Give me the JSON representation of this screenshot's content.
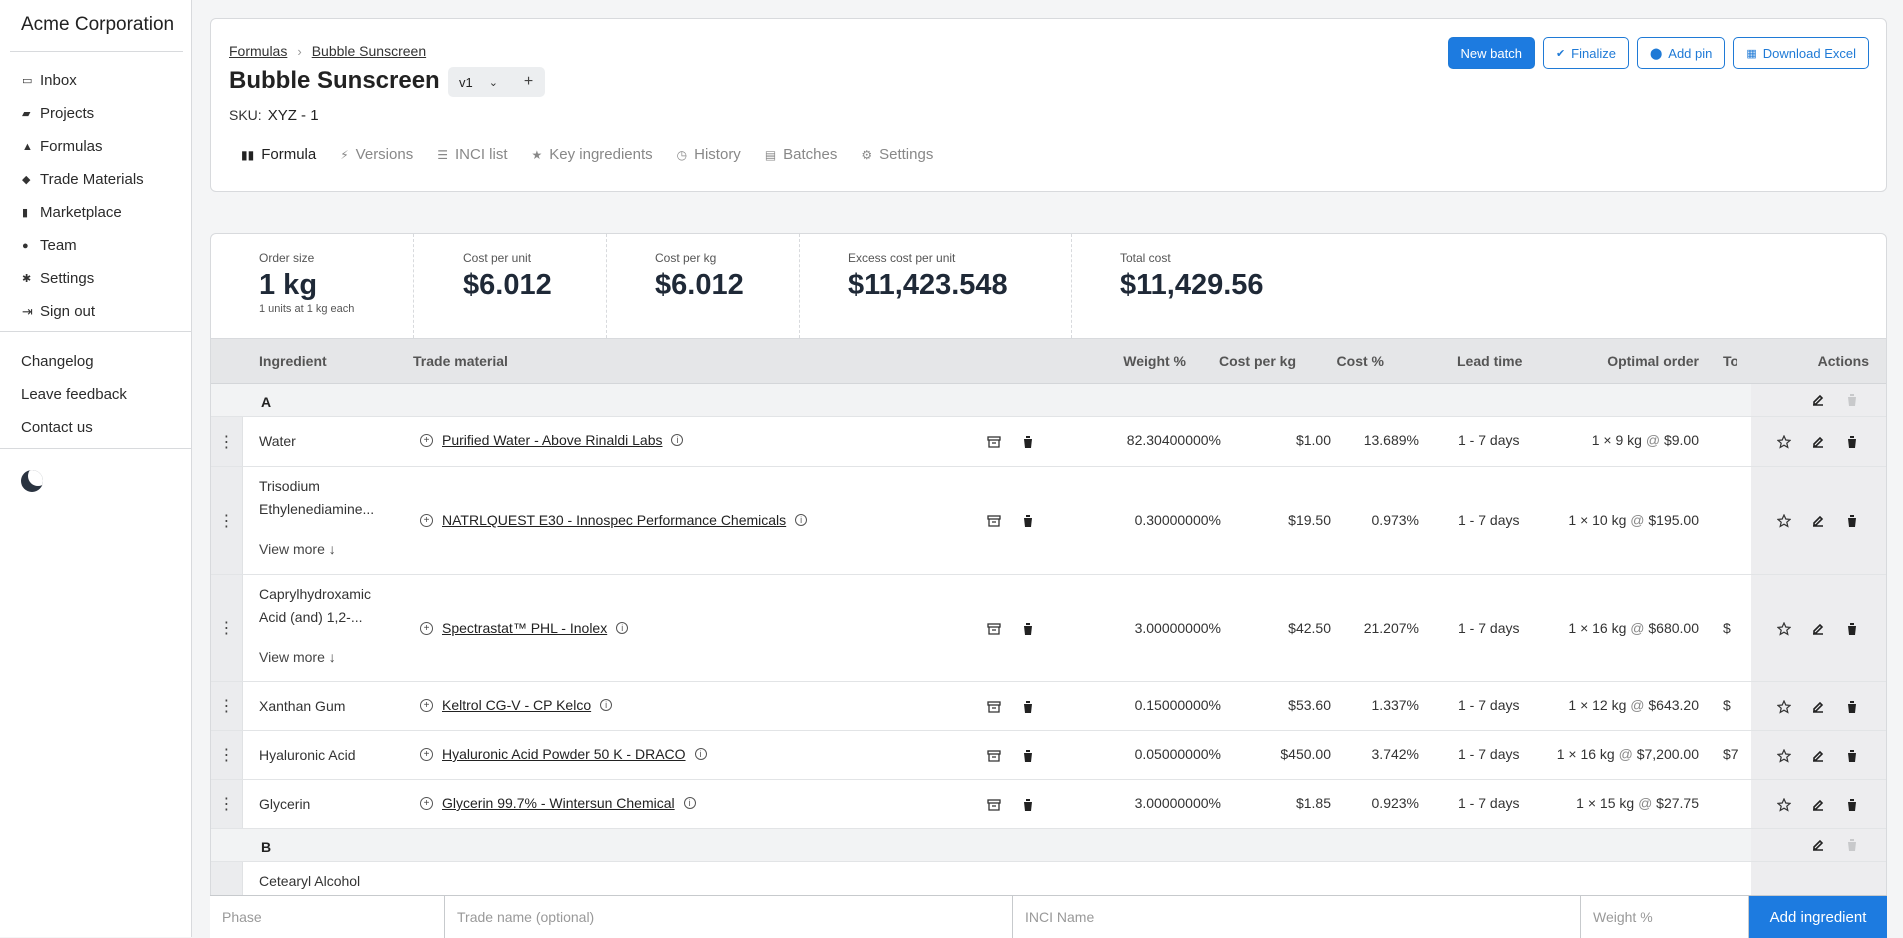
{
  "sidebar": {
    "brand": "Acme Corporation",
    "items": [
      {
        "label": "Inbox",
        "icon": "inbox-icon"
      },
      {
        "label": "Projects",
        "icon": "folder-icon"
      },
      {
        "label": "Formulas",
        "icon": "flask-icon"
      },
      {
        "label": "Trade Materials",
        "icon": "cube-icon"
      },
      {
        "label": "Marketplace",
        "icon": "store-icon"
      },
      {
        "label": "Team",
        "icon": "user-icon"
      },
      {
        "label": "Settings",
        "icon": "gear-icon"
      },
      {
        "label": "Sign out",
        "icon": "sign-out-icon"
      }
    ],
    "links": [
      "Changelog",
      "Leave feedback",
      "Contact us"
    ]
  },
  "header": {
    "breadcrumb": [
      "Formulas",
      "Bubble Sunscreen"
    ],
    "title": "Bubble Sunscreen",
    "version": "v1",
    "sku_label": "SKU:",
    "sku_value": "XYZ - 1",
    "tabs": [
      "Formula",
      "Versions",
      "INCI list",
      "Key ingredients",
      "History",
      "Batches",
      "Settings"
    ],
    "buttons": {
      "new_batch": "New batch",
      "finalize": "Finalize",
      "add_pin": "Add pin",
      "download_excel": "Download Excel"
    }
  },
  "stats": {
    "order_size": {
      "label": "Order size",
      "value": "1 kg",
      "sub": "1 units at 1 kg each"
    },
    "cost_per_unit": {
      "label": "Cost per unit",
      "value": "$6.012"
    },
    "cost_per_kg": {
      "label": "Cost per kg",
      "value": "$6.012"
    },
    "excess_cost": {
      "label": "Excess cost per unit",
      "value": "$11,423.548"
    },
    "total_cost": {
      "label": "Total cost",
      "value": "$11,429.56"
    }
  },
  "table": {
    "columns": {
      "ingredient": "Ingredient",
      "trade_material": "Trade material",
      "weight": "Weight %",
      "cost_kg": "Cost per kg",
      "cost_pct": "Cost %",
      "lead": "Lead time",
      "optimal": "Optimal order",
      "to": "To",
      "actions": "Actions"
    },
    "phase_a": "A",
    "phase_b": "B",
    "view_more": "View more ↓",
    "at": "@",
    "rows": [
      {
        "ingredient": "Water",
        "trade": "Purified Water - Above Rinaldi Labs",
        "weight": "82.30400000%",
        "cost_kg": "$1.00",
        "cost_pct": "13.689%",
        "lead": "1 - 7 days",
        "qty": "1 × 9 kg",
        "price": "$9.00",
        "to": ""
      },
      {
        "ingredient": "Trisodium Ethylenediamine...",
        "trade": "NATRLQUEST E30 - Innospec Performance Chemicals",
        "weight": "0.30000000%",
        "cost_kg": "$19.50",
        "cost_pct": "0.973%",
        "lead": "1 - 7 days",
        "qty": "1 × 10 kg",
        "price": "$195.00",
        "to": ""
      },
      {
        "ingredient": "Caprylhydroxamic Acid (and) 1,2-...",
        "trade": "Spectrastat™ PHL - Inolex",
        "weight": "3.00000000%",
        "cost_kg": "$42.50",
        "cost_pct": "21.207%",
        "lead": "1 - 7 days",
        "qty": "1 × 16 kg",
        "price": "$680.00",
        "to": "$"
      },
      {
        "ingredient": "Xanthan Gum",
        "trade": "Keltrol CG-V - CP Kelco",
        "weight": "0.15000000%",
        "cost_kg": "$53.60",
        "cost_pct": "1.337%",
        "lead": "1 - 7 days",
        "qty": "1 × 12 kg",
        "price": "$643.20",
        "to": "$"
      },
      {
        "ingredient": "Hyaluronic Acid",
        "trade": "Hyaluronic Acid Powder 50 K - DRACO",
        "weight": "0.05000000%",
        "cost_kg": "$450.00",
        "cost_pct": "3.742%",
        "lead": "1 - 7 days",
        "qty": "1 × 16 kg",
        "price": "$7,200.00",
        "to": "$7"
      },
      {
        "ingredient": "Glycerin",
        "trade": "Glycerin 99.7% - Wintersun Chemical",
        "weight": "3.00000000%",
        "cost_kg": "$1.85",
        "cost_pct": "0.923%",
        "lead": "1 - 7 days",
        "qty": "1 × 15 kg",
        "price": "$27.75",
        "to": ""
      }
    ],
    "partial_row": "Cetearyl Alcohol"
  },
  "add_form": {
    "phase_placeholder": "Phase",
    "trade_placeholder": "Trade name (optional)",
    "inci_placeholder": "INCI Name",
    "weight_placeholder": "Weight %",
    "button": "Add ingredient"
  }
}
